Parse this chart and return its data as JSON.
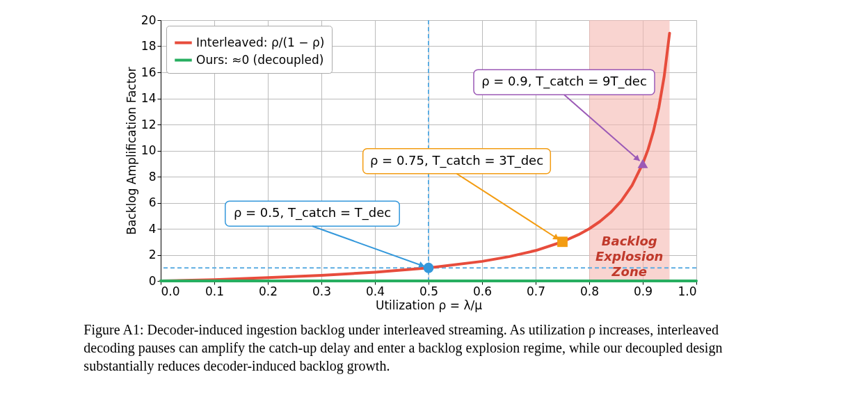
{
  "chart_data": {
    "type": "line",
    "xlabel": "Utilization ρ = λ/μ",
    "ylabel": "Backlog Amplification Factor",
    "series": [
      {
        "name": "Interleaved: ρ/(1 − ρ)",
        "color": "#e74c3c",
        "x": [
          0,
          0.1,
          0.2,
          0.3,
          0.4,
          0.5,
          0.6,
          0.65,
          0.7,
          0.75,
          0.78,
          0.8,
          0.82,
          0.84,
          0.86,
          0.88,
          0.9,
          0.91,
          0.92,
          0.93,
          0.94,
          0.95
        ],
        "values": [
          0,
          0.1,
          0.25,
          0.43,
          0.67,
          1,
          1.5,
          1.86,
          2.33,
          3,
          3.55,
          4,
          4.56,
          5.25,
          6.14,
          7.33,
          9,
          10.1,
          11.5,
          13.3,
          15.7,
          19
        ]
      },
      {
        "name": "Ours: ≈0 (decoupled)",
        "color": "#27ae60",
        "x": [
          0,
          1
        ],
        "values": [
          0,
          0
        ]
      },
      {
        "type": "scatter",
        "marker": "circle",
        "color": "#3498db",
        "x": [
          0.5
        ],
        "values": [
          1
        ]
      },
      {
        "type": "scatter",
        "marker": "square",
        "color": "#f39c12",
        "x": [
          0.75
        ],
        "values": [
          3
        ]
      },
      {
        "type": "scatter",
        "marker": "triangle",
        "color": "#9b59b6",
        "x": [
          0.9
        ],
        "values": [
          9
        ]
      }
    ],
    "xlim": [
      0,
      1
    ],
    "ylim": [
      0,
      20
    ],
    "xticks": [
      {
        "value": 0,
        "label": "0.0"
      },
      0.1,
      0.2,
      0.3,
      0.4,
      0.5,
      0.6,
      0.7,
      0.8,
      0.9,
      {
        "value": 1,
        "label": "1.0"
      }
    ],
    "yticks": [
      0,
      2,
      4,
      6,
      8,
      10,
      12,
      14,
      16,
      18,
      20
    ],
    "ref_lines": [
      {
        "axis": "x",
        "value": 0.5,
        "color": "#5dade2",
        "line_style": "dashed"
      },
      {
        "axis": "y",
        "value": 1,
        "color": "#5dade2",
        "line_style": "dashed"
      }
    ],
    "bands": [
      {
        "axis": "x",
        "from": 0.8,
        "to": 0.95,
        "label": "Backlog Explosion Zone",
        "color": "#f5b7b1"
      }
    ],
    "annotations": [
      {
        "text": "ρ = 0.5, T_catch = T_dec",
        "x": 0.5,
        "y": 1
      },
      {
        "text": "ρ = 0.75, T_catch = 3T_dec",
        "x": 0.75,
        "y": 3
      },
      {
        "text": "ρ = 0.9, T_catch = 9T_dec",
        "x": 0.9,
        "y": 9
      },
      "Figure A1: Decoder-induced ingestion backlog under interleaved streaming. As utilization ρ increases, interleaved decoding pauses can amplify the catch-up delay and enter a backlog explosion regime, while our decoupled design substantially reduces decoder-induced backlog growth."
    ],
    "grid": true,
    "legend": "top left",
    "marker": "none",
    "line_style": "solid"
  }
}
